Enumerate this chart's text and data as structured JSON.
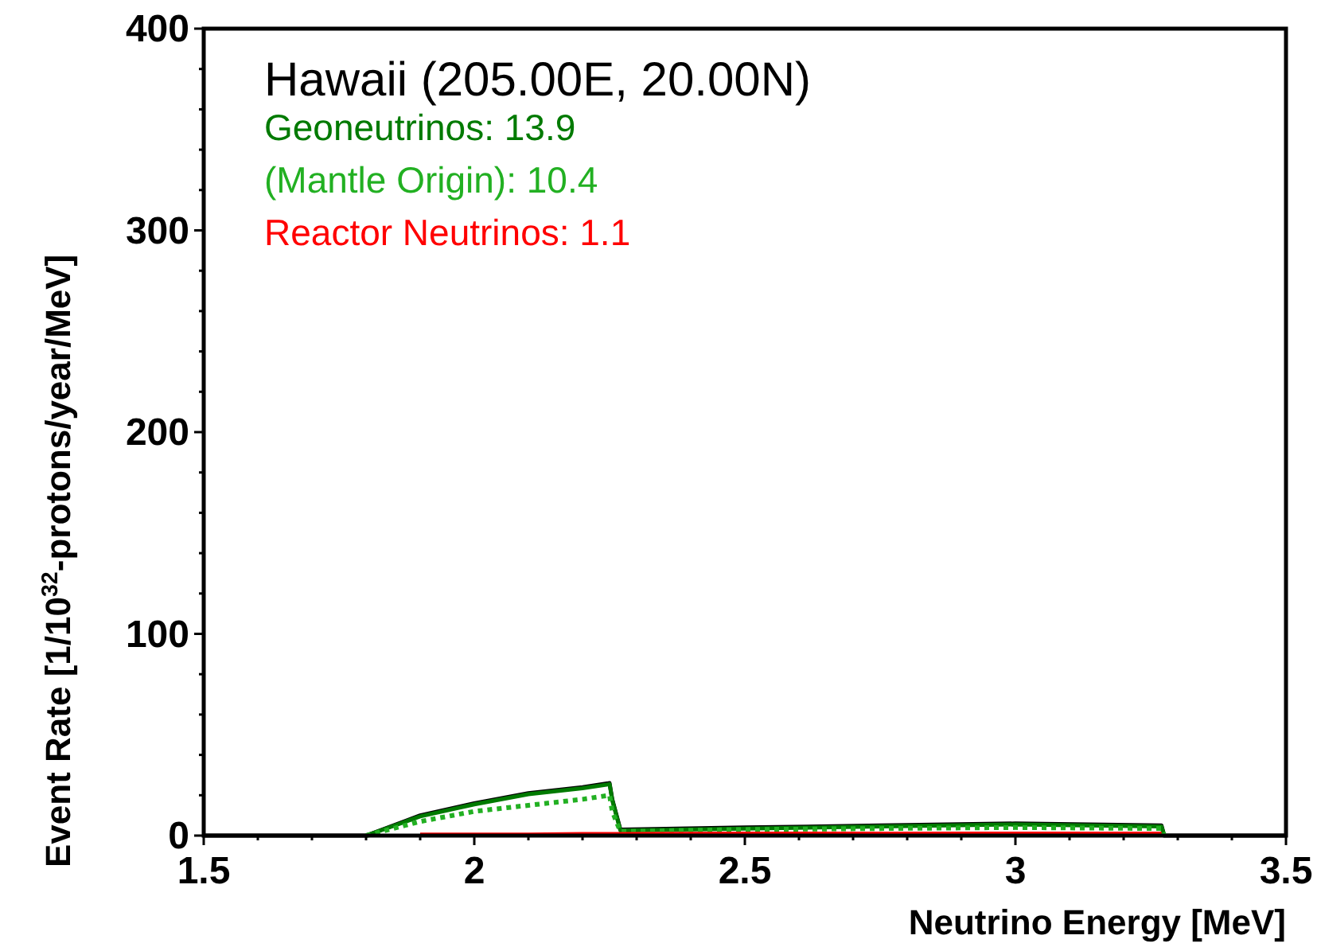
{
  "chart_data": {
    "type": "line",
    "title": "Hawaii (205.00E, 20.00N)",
    "xlabel": "Neutrino Energy [MeV]",
    "ylabel": "Event Rate [1/10$^{32}$-protons/year/MeV]",
    "x": [
      1.5,
      1.8,
      1.9,
      2.0,
      2.1,
      2.2,
      2.25,
      2.255,
      2.27,
      2.5,
      2.75,
      3.0,
      3.27,
      3.275,
      3.5
    ],
    "series": [
      {
        "color": "#000000",
        "values": [
          0,
          0,
          10,
          16,
          21,
          24,
          26,
          18,
          3,
          4,
          5,
          6,
          5,
          0,
          0
        ]
      },
      {
        "name": "Geoneutrinos: 13.9",
        "color": "#007a00",
        "values": [
          null,
          0,
          9.5,
          15.5,
          20.5,
          23.5,
          25.5,
          17.5,
          2.5,
          3.5,
          4.5,
          5.5,
          4.5,
          0,
          null
        ]
      },
      {
        "name": "(Mantle Origin): 10.4",
        "color": "#22b022",
        "line_style": "dotted",
        "values": [
          null,
          0,
          7,
          12,
          15,
          18,
          20,
          12,
          2,
          3,
          3.5,
          4,
          3.5,
          0,
          null
        ]
      },
      {
        "name": "Reactor Neutrinos: 1.1",
        "color": "#ff0000",
        "values": [
          null,
          null,
          0.5,
          0.5,
          0.5,
          0.8,
          0.8,
          0.8,
          0.8,
          1,
          1,
          1,
          1,
          null,
          null
        ]
      }
    ],
    "xlim": [
      1.5,
      3.5
    ],
    "ylim": [
      0,
      400
    ],
    "xticks": [
      1.5,
      {
        "value": 1.6,
        "label": null
      },
      {
        "value": 1.7,
        "label": null
      },
      {
        "value": 1.8,
        "label": null
      },
      {
        "value": 1.9,
        "label": null
      },
      2,
      {
        "value": 2.1,
        "label": null
      },
      {
        "value": 2.2,
        "label": null
      },
      {
        "value": 2.3,
        "label": null
      },
      {
        "value": 2.4,
        "label": null
      },
      2.5,
      {
        "value": 2.6,
        "label": null
      },
      {
        "value": 2.7,
        "label": null
      },
      {
        "value": 2.8,
        "label": null
      },
      {
        "value": 2.9,
        "label": null
      },
      3,
      {
        "value": 3.1,
        "label": null
      },
      {
        "value": 3.2,
        "label": null
      },
      {
        "value": 3.3,
        "label": null
      },
      {
        "value": 3.4,
        "label": null
      },
      3.5
    ],
    "yticks": [
      0,
      {
        "value": 20,
        "label": null
      },
      {
        "value": 40,
        "label": null
      },
      {
        "value": 60,
        "label": null
      },
      {
        "value": 80,
        "label": null
      },
      100,
      {
        "value": 120,
        "label": null
      },
      {
        "value": 140,
        "label": null
      },
      {
        "value": 160,
        "label": null
      },
      {
        "value": 180,
        "label": null
      },
      200,
      {
        "value": 220,
        "label": null
      },
      {
        "value": 240,
        "label": null
      },
      {
        "value": 260,
        "label": null
      },
      {
        "value": 280,
        "label": null
      },
      300,
      {
        "value": 320,
        "label": null
      },
      {
        "value": 340,
        "label": null
      },
      {
        "value": 360,
        "label": null
      },
      {
        "value": 380,
        "label": null
      },
      400
    ],
    "legend": "top left",
    "grid": false,
    "marker": "none"
  }
}
